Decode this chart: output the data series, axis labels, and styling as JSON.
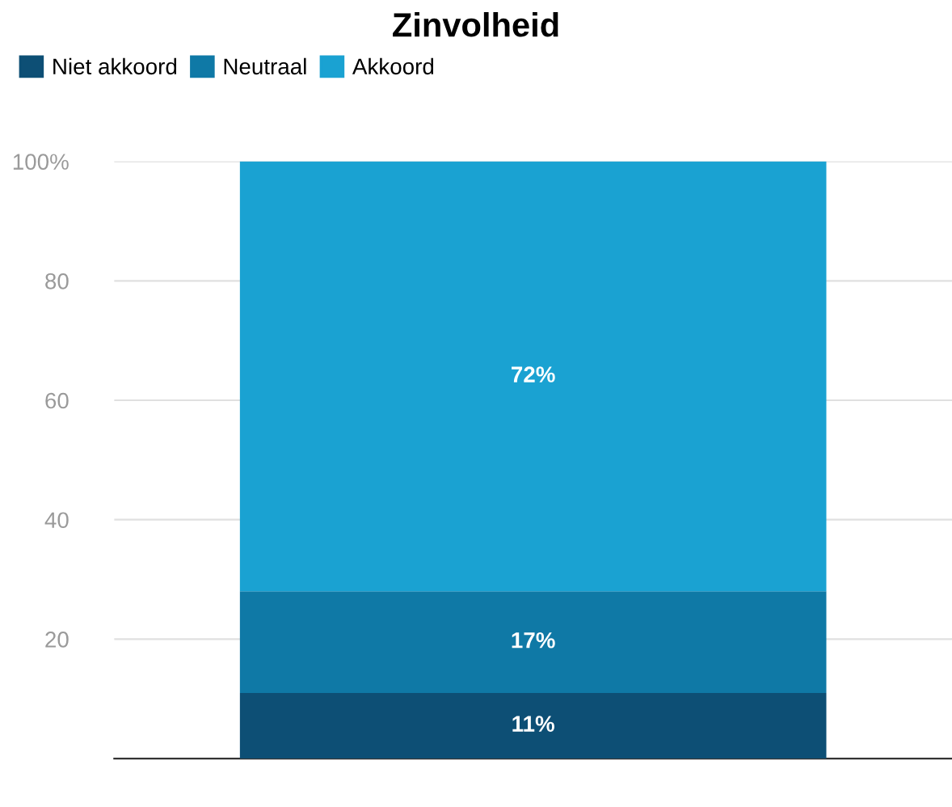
{
  "chart_data": {
    "type": "bar",
    "title": "Zinvolheid",
    "categories": [
      null
    ],
    "stacked": true,
    "series": [
      {
        "name": "Niet akkoord",
        "color": "#0d4f75",
        "values": [
          11
        ],
        "value_labels": [
          "11%"
        ]
      },
      {
        "name": "Neutraal",
        "color": "#0f79a6",
        "values": [
          17
        ],
        "value_labels": [
          "17%"
        ]
      },
      {
        "name": "Akkoord",
        "color": "#1aa2d2",
        "values": [
          72
        ],
        "value_labels": [
          "72%"
        ]
      }
    ],
    "ylim": [
      0,
      100
    ],
    "yticks": [
      20,
      40,
      60,
      80,
      {
        "value": 100,
        "label": "100%"
      }
    ],
    "grid": "y",
    "legend": "top left"
  }
}
